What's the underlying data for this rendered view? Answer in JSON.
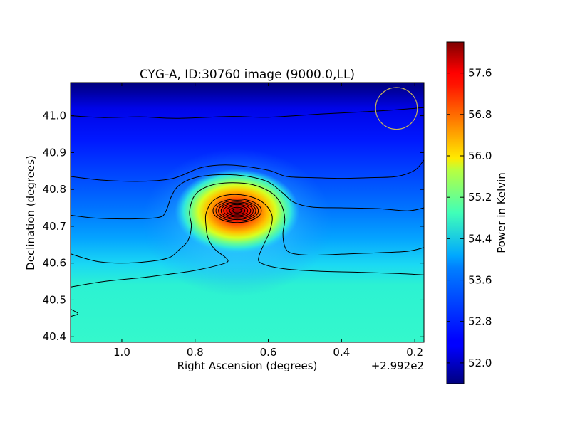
{
  "chart_data": {
    "type": "heatmap",
    "title": "CYG-A, ID:30760 image (9000.0,LL)",
    "xlabel": "Right Ascension (degrees)",
    "ylabel": "Declination (degrees)",
    "x_offset_label": "+2.992e2",
    "x_axis_inverted": true,
    "xlim": [
      1.14,
      0.175
    ],
    "ylim": [
      40.385,
      41.09
    ],
    "x_ticks": [
      {
        "value": 1.0,
        "label": "1.0"
      },
      {
        "value": 0.8,
        "label": "0.8"
      },
      {
        "value": 0.6,
        "label": "0.6"
      },
      {
        "value": 0.4,
        "label": "0.4"
      },
      {
        "value": 0.2,
        "label": "0.2"
      }
    ],
    "y_ticks": [
      {
        "value": 40.4,
        "label": "40.4"
      },
      {
        "value": 40.5,
        "label": "40.5"
      },
      {
        "value": 40.6,
        "label": "40.6"
      },
      {
        "value": 40.7,
        "label": "40.7"
      },
      {
        "value": 40.8,
        "label": "40.8"
      },
      {
        "value": 40.9,
        "label": "40.9"
      },
      {
        "value": 41.0,
        "label": "41.0"
      }
    ],
    "colorbar": {
      "label": "Power in Kelvin",
      "colormap": "jet",
      "range": [
        51.6,
        58.2
      ],
      "ticks": [
        {
          "value": 52.0,
          "label": "52.0"
        },
        {
          "value": 52.8,
          "label": "52.8"
        },
        {
          "value": 53.6,
          "label": "53.6"
        },
        {
          "value": 54.4,
          "label": "54.4"
        },
        {
          "value": 55.2,
          "label": "55.2"
        },
        {
          "value": 56.0,
          "label": "56.0"
        },
        {
          "value": 56.8,
          "label": "56.8"
        },
        {
          "value": 57.6,
          "label": "57.6"
        }
      ]
    },
    "source_peak": {
      "ra": 0.685,
      "dec": 40.74,
      "value": 58.0
    },
    "beam_circle": {
      "ra": 0.25,
      "dec": 41.02,
      "radius_deg": 0.057,
      "color": "#c8b45a"
    },
    "contour_color": "#000000",
    "contours_open": [
      {
        "name": "level-1",
        "points": [
          [
            1.14,
            41.0
          ],
          [
            1.05,
            40.995
          ],
          [
            0.95,
            40.997
          ],
          [
            0.85,
            40.993
          ],
          [
            0.7,
            40.998
          ],
          [
            0.6,
            40.996
          ],
          [
            0.45,
            41.005
          ],
          [
            0.35,
            41.01
          ],
          [
            0.28,
            41.014
          ],
          [
            0.2,
            41.02
          ],
          [
            0.175,
            41.022
          ]
        ]
      },
      {
        "name": "level-2",
        "points": [
          [
            1.14,
            40.835
          ],
          [
            1.05,
            40.825
          ],
          [
            0.95,
            40.822
          ],
          [
            0.86,
            40.83
          ],
          [
            0.78,
            40.86
          ],
          [
            0.7,
            40.866
          ],
          [
            0.6,
            40.852
          ],
          [
            0.55,
            40.835
          ],
          [
            0.48,
            40.832
          ],
          [
            0.4,
            40.83
          ],
          [
            0.32,
            40.832
          ],
          [
            0.25,
            40.835
          ],
          [
            0.2,
            40.852
          ],
          [
            0.175,
            40.88
          ]
        ]
      },
      {
        "name": "level-3",
        "points": [
          [
            1.14,
            40.73
          ],
          [
            1.07,
            40.722
          ],
          [
            0.98,
            40.72
          ],
          [
            0.9,
            40.724
          ],
          [
            0.88,
            40.74
          ],
          [
            0.865,
            40.78
          ],
          [
            0.845,
            40.81
          ],
          [
            0.8,
            40.832
          ],
          [
            0.73,
            40.84
          ],
          [
            0.66,
            40.836
          ],
          [
            0.6,
            40.82
          ],
          [
            0.56,
            40.79
          ],
          [
            0.53,
            40.765
          ],
          [
            0.48,
            40.752
          ],
          [
            0.4,
            40.75
          ],
          [
            0.3,
            40.748
          ],
          [
            0.22,
            40.742
          ],
          [
            0.175,
            40.75
          ]
        ]
      },
      {
        "name": "level-4",
        "points": [
          [
            1.14,
            40.625
          ],
          [
            1.07,
            40.605
          ],
          [
            1.0,
            40.6
          ],
          [
            0.92,
            40.605
          ],
          [
            0.87,
            40.615
          ],
          [
            0.845,
            40.635
          ],
          [
            0.82,
            40.66
          ],
          [
            0.81,
            40.7
          ],
          [
            0.815,
            40.74
          ],
          [
            0.8,
            40.785
          ],
          [
            0.76,
            40.81
          ],
          [
            0.7,
            40.818
          ],
          [
            0.64,
            40.812
          ],
          [
            0.59,
            40.79
          ],
          [
            0.565,
            40.76
          ],
          [
            0.555,
            40.72
          ],
          [
            0.56,
            40.68
          ],
          [
            0.555,
            40.645
          ],
          [
            0.54,
            40.628
          ],
          [
            0.5,
            40.622
          ],
          [
            0.45,
            40.622
          ],
          [
            0.38,
            40.625
          ],
          [
            0.3,
            40.628
          ],
          [
            0.22,
            40.632
          ],
          [
            0.175,
            40.642
          ]
        ]
      },
      {
        "name": "level-5",
        "points": [
          [
            1.14,
            40.535
          ],
          [
            1.05,
            40.55
          ],
          [
            0.95,
            40.56
          ],
          [
            0.87,
            40.57
          ],
          [
            0.8,
            40.58
          ],
          [
            0.73,
            40.596
          ],
          [
            0.71,
            40.605
          ],
          [
            0.72,
            40.618
          ],
          [
            0.73,
            40.625
          ],
          [
            0.75,
            40.642
          ],
          [
            0.765,
            40.67
          ],
          [
            0.77,
            40.7
          ],
          [
            0.77,
            40.735
          ],
          [
            0.75,
            40.77
          ],
          [
            0.71,
            40.785
          ],
          [
            0.66,
            40.783
          ],
          [
            0.615,
            40.765
          ],
          [
            0.59,
            40.73
          ],
          [
            0.595,
            40.69
          ],
          [
            0.61,
            40.655
          ],
          [
            0.625,
            40.62
          ],
          [
            0.62,
            40.6
          ],
          [
            0.56,
            40.585
          ],
          [
            0.46,
            40.578
          ],
          [
            0.35,
            40.575
          ],
          [
            0.25,
            40.572
          ],
          [
            0.175,
            40.568
          ]
        ]
      },
      {
        "name": "level-edge",
        "points": [
          [
            1.14,
            40.475
          ],
          [
            1.13,
            40.47
          ],
          [
            1.12,
            40.462
          ],
          [
            1.14,
            40.455
          ]
        ]
      }
    ],
    "contours_closed": [
      {
        "name": "ring-1",
        "cx": 0.685,
        "cy": 40.742,
        "rx": 0.066,
        "ry": 0.032
      },
      {
        "name": "ring-2",
        "cx": 0.685,
        "cy": 40.742,
        "rx": 0.058,
        "ry": 0.028
      },
      {
        "name": "ring-3",
        "cx": 0.685,
        "cy": 40.742,
        "rx": 0.051,
        "ry": 0.024
      },
      {
        "name": "ring-4",
        "cx": 0.685,
        "cy": 40.742,
        "rx": 0.044,
        "ry": 0.021
      },
      {
        "name": "ring-5",
        "cx": 0.685,
        "cy": 40.742,
        "rx": 0.037,
        "ry": 0.017
      },
      {
        "name": "ring-6",
        "cx": 0.685,
        "cy": 40.742,
        "rx": 0.029,
        "ry": 0.0135
      },
      {
        "name": "ring-7",
        "cx": 0.685,
        "cy": 40.742,
        "rx": 0.021,
        "ry": 0.0095
      },
      {
        "name": "ring-8",
        "cx": 0.685,
        "cy": 40.742,
        "rx": 0.012,
        "ry": 0.006
      }
    ]
  }
}
